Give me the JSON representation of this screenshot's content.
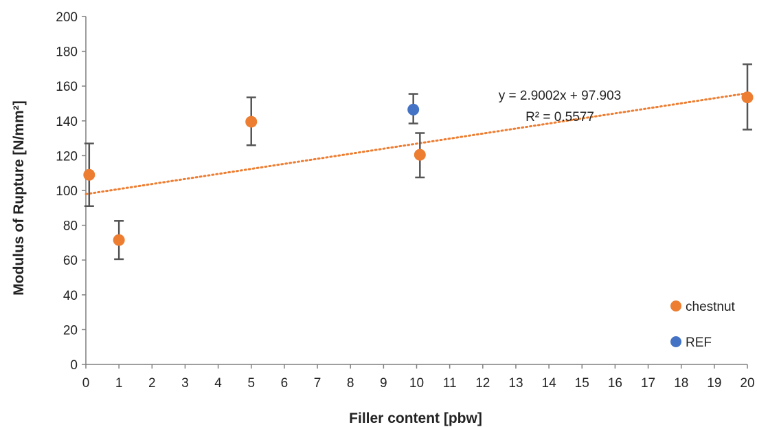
{
  "chart_data": {
    "type": "scatter",
    "xlabel": "Filler content [pbw]",
    "ylabel": "Modulus of Rupture [N/mm²]",
    "xlim": [
      0,
      20
    ],
    "ylim": [
      0,
      200
    ],
    "xticks": [
      0,
      1,
      2,
      3,
      4,
      5,
      6,
      7,
      8,
      9,
      10,
      11,
      12,
      13,
      14,
      15,
      16,
      17,
      18,
      19,
      20
    ],
    "yticks": [
      0,
      20,
      40,
      60,
      80,
      100,
      120,
      140,
      160,
      180,
      200
    ],
    "grid": false,
    "legend_position": "bottom-right",
    "series": [
      {
        "name": "chestnut",
        "color": "#ED7D31",
        "points": [
          {
            "x": 0.1,
            "y": 109,
            "err_low": 91,
            "err_high": 127
          },
          {
            "x": 1,
            "y": 71.5,
            "err_low": 60.5,
            "err_high": 82.5
          },
          {
            "x": 5,
            "y": 139.5,
            "err_low": 126,
            "err_high": 153.5
          },
          {
            "x": 10.1,
            "y": 120.5,
            "err_low": 107.5,
            "err_high": 133
          },
          {
            "x": 20,
            "y": 153.5,
            "err_low": 135,
            "err_high": 172.5
          }
        ]
      },
      {
        "name": "REF",
        "color": "#4472C4",
        "points": [
          {
            "x": 9.9,
            "y": 146.5,
            "err_low": 138.5,
            "err_high": 155.5
          }
        ]
      }
    ],
    "trendline": {
      "series": "chestnut",
      "type": "linear",
      "slope": 2.9002,
      "intercept": 97.903,
      "color": "#ED7D31",
      "style": "dotted",
      "equation": "y = 2.9002x + 97.903",
      "r_squared": "R² = 0.5577"
    },
    "errorbar_color": "#555555"
  }
}
